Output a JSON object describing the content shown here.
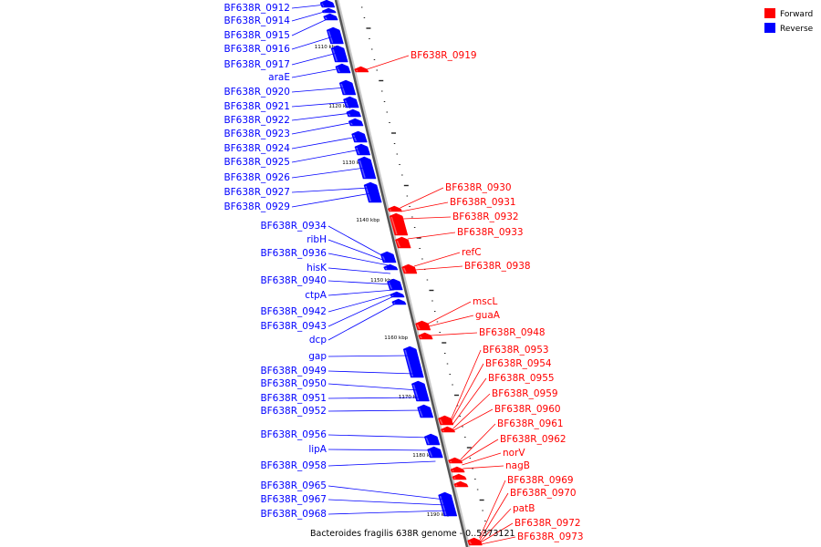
{
  "legend": {
    "forward": {
      "label": "Forward",
      "color": "#ff0000"
    },
    "reverse": {
      "label": "Reverse",
      "color": "#0000ff"
    }
  },
  "caption": "Bacteroides fragilis 638R genome - 0..5373121",
  "axis": {
    "kbp_labels": [
      "1110 kbp",
      "1120 kbp",
      "1130 kbp",
      "1140 kbp",
      "1150 kbp",
      "1160 kbp",
      "1170 kbp",
      "1180 kbp",
      "1190 kbp"
    ]
  },
  "genes": {
    "reverse": [
      "BF638R_0912",
      "BF638R_0914",
      "BF638R_0915",
      "BF638R_0916",
      "BF638R_0917",
      "araE",
      "BF638R_0920",
      "BF638R_0921",
      "BF638R_0922",
      "BF638R_0923",
      "BF638R_0924",
      "BF638R_0925",
      "BF638R_0926",
      "BF638R_0927",
      "BF638R_0929",
      "BF638R_0934",
      "ribH",
      "BF638R_0936",
      "hisK",
      "BF638R_0940",
      "ctpA",
      "BF638R_0942",
      "BF638R_0943",
      "dcp",
      "gap",
      "BF638R_0949",
      "BF638R_0950",
      "BF638R_0951",
      "BF638R_0952",
      "BF638R_0956",
      "lipA",
      "BF638R_0958",
      "BF638R_0965",
      "BF638R_0967",
      "BF638R_0968"
    ],
    "forward": [
      "BF638R_0919",
      "BF638R_0930",
      "BF638R_0931",
      "BF638R_0932",
      "BF638R_0933",
      "refC",
      "BF638R_0938",
      "mscL",
      "guaA",
      "BF638R_0948",
      "BF638R_0953",
      "BF638R_0954",
      "BF638R_0955",
      "BF638R_0959",
      "BF638R_0960",
      "BF638R_0961",
      "BF638R_0962",
      "norV",
      "nagB",
      "BF638R_0969",
      "BF638R_0970",
      "patB",
      "BF638R_0972",
      "BF638R_0973"
    ]
  }
}
